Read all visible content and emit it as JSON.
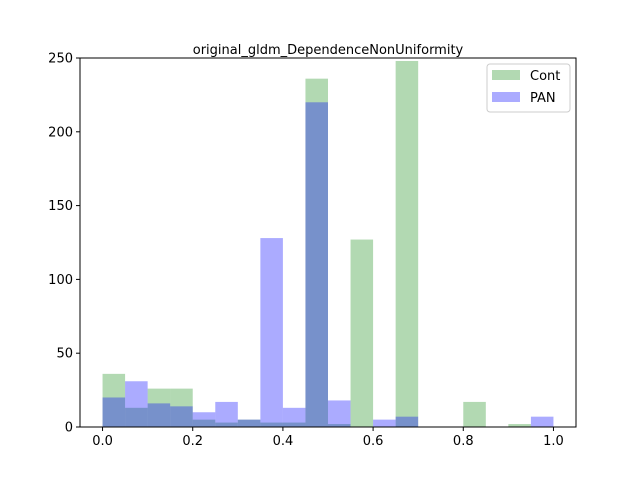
{
  "chart_data": {
    "type": "bar",
    "title": "original_gldm_DependenceNonUniformity",
    "xlabel": "",
    "ylabel": "",
    "xlim": [
      -0.05,
      1.05
    ],
    "ylim": [
      0,
      250
    ],
    "xticks": [
      "0.0",
      "0.2",
      "0.4",
      "0.6",
      "0.8",
      "1.0"
    ],
    "xtick_values": [
      0.0,
      0.2,
      0.4,
      0.6,
      0.8,
      1.0
    ],
    "yticks": [
      "0",
      "50",
      "100",
      "150",
      "200",
      "250"
    ],
    "ytick_values": [
      0,
      50,
      100,
      150,
      200,
      250
    ],
    "bin_edges": [
      0.0,
      0.05,
      0.1,
      0.15,
      0.2,
      0.25,
      0.3,
      0.35,
      0.4,
      0.45,
      0.5,
      0.55,
      0.6,
      0.65,
      0.7,
      0.75,
      0.8,
      0.85,
      0.9,
      0.95,
      1.0
    ],
    "legend_position": "top-right",
    "grid": false,
    "series": [
      {
        "name": "Cont",
        "color": "#008000",
        "alpha": 0.3,
        "values": [
          36,
          13,
          26,
          26,
          5,
          3,
          5,
          3,
          3,
          236,
          2,
          127,
          0,
          248,
          0,
          0,
          17,
          0,
          2,
          0
        ]
      },
      {
        "name": "PAN",
        "color": "#0000ff",
        "alpha": 0.33,
        "values": [
          20,
          31,
          16,
          14,
          10,
          17,
          5,
          128,
          13,
          220,
          18,
          0,
          5,
          7,
          0,
          0,
          0,
          0,
          0,
          7
        ]
      }
    ]
  }
}
